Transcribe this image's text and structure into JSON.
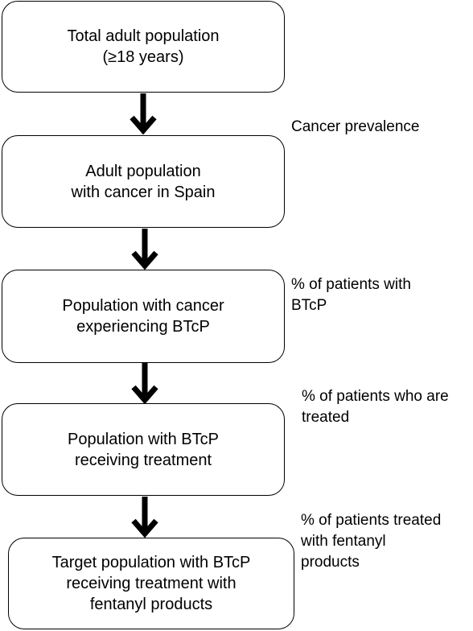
{
  "diagram": {
    "boxes": [
      {
        "id": "total-adult-population",
        "text": "Total adult population\n(≥18 years)"
      },
      {
        "id": "adult-population-with-cancer",
        "text": "Adult population\nwith cancer in Spain"
      },
      {
        "id": "population-experiencing-btcp",
        "text": "Population with cancer\nexperiencing BTcP"
      },
      {
        "id": "population-receiving-treatment",
        "text": "Population with BTcP\nreceiving treatment"
      },
      {
        "id": "target-population",
        "text": "Target population with BTcP\nreceiving treatment with\nfentanyl products"
      }
    ],
    "step_labels": [
      {
        "id": "cancer-prevalence",
        "text": "Cancer prevalence"
      },
      {
        "id": "percent-patients-with-btcp",
        "text": "% of patients with\nBTcP"
      },
      {
        "id": "percent-patients-treated",
        "text": "% of patients who are\ntreated"
      },
      {
        "id": "percent-patients-fentanyl",
        "text": "% of patients treated\nwith fentanyl\nproducts"
      }
    ],
    "colors": {
      "stroke": "#000000",
      "background": "#ffffff"
    }
  }
}
